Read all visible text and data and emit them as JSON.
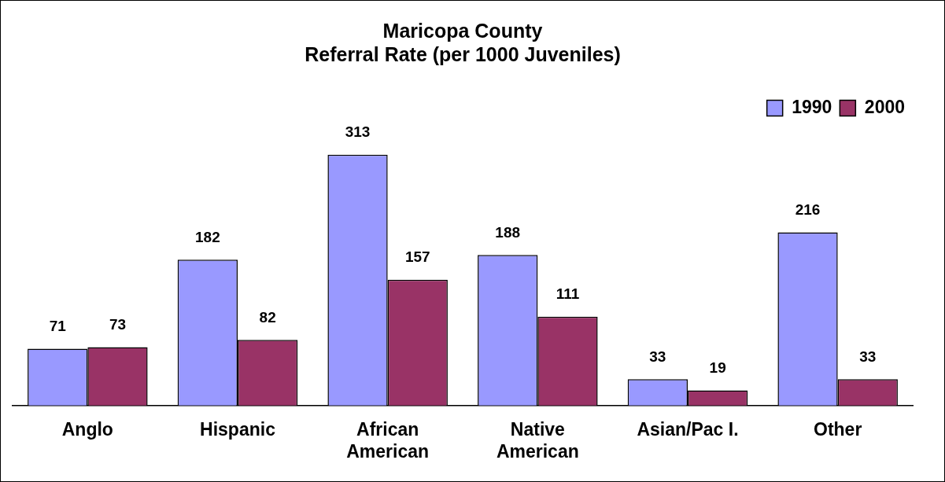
{
  "chart_data": {
    "type": "bar",
    "title": "Maricopa County\nReferral Rate (per 1000 Juveniles)",
    "categories": [
      "Anglo",
      "Hispanic",
      "African American",
      "Native American",
      "Asian/Pac I.",
      "Other"
    ],
    "series": [
      {
        "name": "1990",
        "color": "#9999ff",
        "values": [
          71,
          182,
          313,
          188,
          33,
          216
        ]
      },
      {
        "name": "2000",
        "color": "#993366",
        "values": [
          73,
          82,
          157,
          111,
          19,
          33
        ]
      }
    ],
    "data_labels": true,
    "legend": "top right",
    "grid": false
  }
}
